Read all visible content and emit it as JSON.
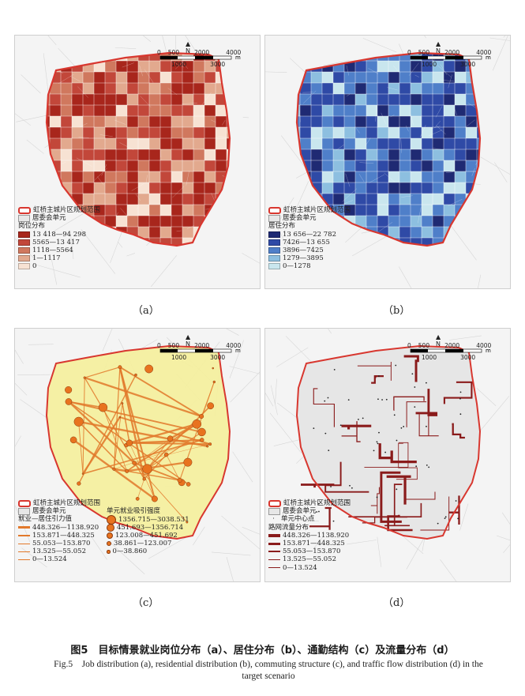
{
  "panels": {
    "a": {
      "label": "（a）",
      "boundary_label": "虹桥主城片区规划范围",
      "unit_label": "居委会单元",
      "legend_title": "岗位分布",
      "classes": [
        {
          "range": "13 418—94 298",
          "color": "#a8261c"
        },
        {
          "range": "5565—13 417",
          "color": "#c2473a"
        },
        {
          "range": "1118—5564",
          "color": "#d0785e"
        },
        {
          "range": "1—1117",
          "color": "#e2a98e"
        },
        {
          "range": "0",
          "color": "#f7e2d3"
        }
      ]
    },
    "b": {
      "label": "（b）",
      "boundary_label": "虹桥主城片区规划范围",
      "unit_label": "居委会单元",
      "legend_title": "居住分布",
      "classes": [
        {
          "range": "13 656—22 782",
          "color": "#1f2a73"
        },
        {
          "range": "7426—13 655",
          "color": "#2f4aa6"
        },
        {
          "range": "3896—7425",
          "color": "#4f7fc9"
        },
        {
          "range": "1279—3895",
          "color": "#8dbfe0"
        },
        {
          "range": "0—1278",
          "color": "#c9e6ee"
        }
      ]
    },
    "c": {
      "label": "（c）",
      "boundary_label": "虹桥主城片区规划范围",
      "unit_label": "居委会单元",
      "flow_title": "就业—居住引力值",
      "flow_classes": [
        {
          "range": "448.326—1138.920",
          "width": 3
        },
        {
          "range": "153.871—448.325",
          "width": 2.2
        },
        {
          "range": "55.053—153.870",
          "width": 1.5
        },
        {
          "range": "13.525—55.052",
          "width": 1
        },
        {
          "range": "0—13.524",
          "width": 0.6
        }
      ],
      "node_title": "单元就业吸引强度",
      "node_classes": [
        {
          "range": "1356.715—3038.531",
          "size": 10
        },
        {
          "range": "451.693—1356.714",
          "size": 8
        },
        {
          "range": "123.008—451.692",
          "size": 6
        },
        {
          "range": "38.861—123.007",
          "size": 4
        },
        {
          "range": "0—38.860",
          "size": 2.5
        }
      ]
    },
    "d": {
      "label": "（d）",
      "boundary_label": "虹桥主城片区规划范围",
      "unit_label": "居委会单元",
      "center_label": "单元中心点",
      "legend_title": "路网流量分布",
      "classes": [
        {
          "range": "448.326—1138.920",
          "width": 4
        },
        {
          "range": "153.871—448.325",
          "width": 3
        },
        {
          "range": "55.053—153.870",
          "width": 2
        },
        {
          "range": "13.525—55.052",
          "width": 1.4
        },
        {
          "range": "0—13.524",
          "width": 0.8
        }
      ]
    }
  },
  "scale": {
    "north": "N",
    "unit": "m",
    "top_ticks": [
      "0",
      "500",
      "2000",
      "4000"
    ],
    "bottom_ticks": [
      "1000",
      "3000"
    ]
  },
  "caption": {
    "cn": "图5　目标情景就业岗位分布（a）、居住分布（b）、通勤结构（c）及流量分布（d）",
    "en": "Fig.5　Job distribution (a), residential distribution (b), commuting structure (c), and traffic flow distribution (d) in the target scenario"
  },
  "colors": {
    "boundary": "#d8372f",
    "flow_line": "#e2792b",
    "hinterland_c": "#f5ef9b",
    "road_d": "#8a1b1b"
  }
}
